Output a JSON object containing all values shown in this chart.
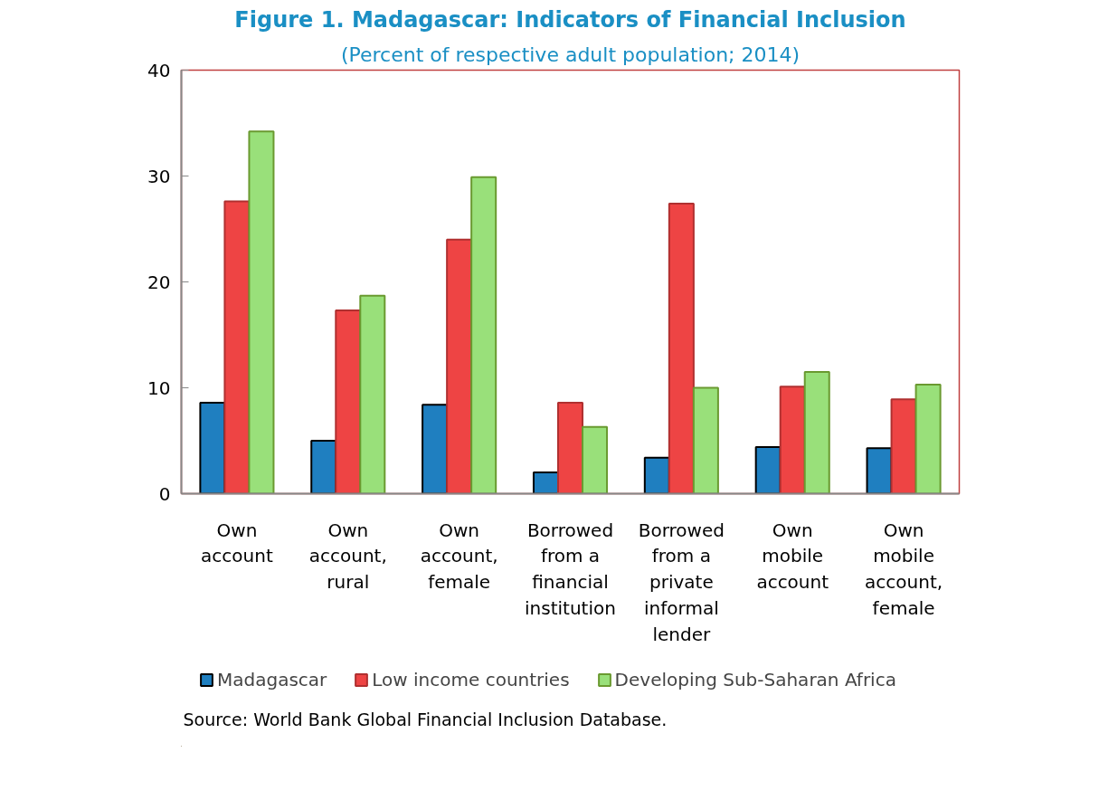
{
  "chart_data": {
    "type": "bar",
    "title": "Figure 1. Madagascar: Indicators of Financial Inclusion",
    "subtitle": "(Percent of respective adult population; 2014)",
    "categories": [
      "Own\naccount",
      "Own\naccount,\nrural",
      "Own\naccount,\nfemale",
      "Borrowed\nfrom a\nfinancial\ninstitution",
      "Borrowed\nfrom a\nprivate\ninformal\nlender",
      "Own\nmobile\naccount",
      "Own\nmobile\naccount,\nfemale"
    ],
    "series": [
      {
        "name": "Madagascar",
        "color": "#1f7fc0",
        "values": [
          8.6,
          5.0,
          8.4,
          2.0,
          3.4,
          4.4,
          4.3
        ]
      },
      {
        "name": "Low income countries",
        "color": "#ee4444",
        "values": [
          27.6,
          17.3,
          24.0,
          8.6,
          27.4,
          10.1,
          8.9
        ]
      },
      {
        "name": "Developing Sub-Saharan Africa",
        "color": "#99e07a",
        "values": [
          34.2,
          18.7,
          29.9,
          6.3,
          10.0,
          11.5,
          10.3
        ]
      }
    ],
    "ylim": [
      0,
      40
    ],
    "yticks": [
      0,
      10,
      20,
      30,
      40
    ],
    "grid": false,
    "legend": "bottom",
    "annotations": [
      "Source: World Bank Global Financial Inclusion Database."
    ]
  }
}
